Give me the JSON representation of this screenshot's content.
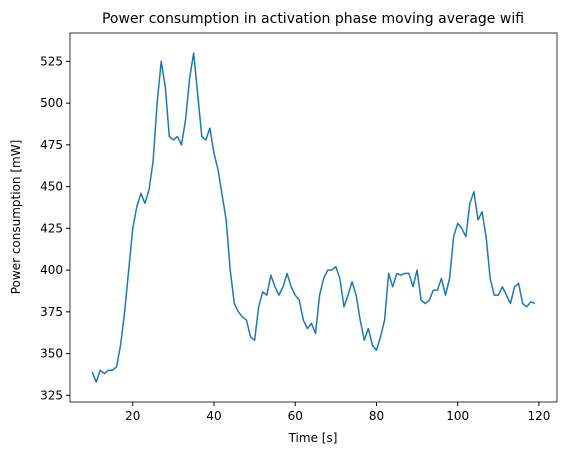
{
  "chart_data": {
    "type": "line",
    "title": "Power consumption in activation phase moving average wifi",
    "x_label": "Time [s]",
    "y_label": "Power consumption [mW]",
    "x": [
      10,
      11,
      12,
      13,
      14,
      15,
      16,
      17,
      18,
      19,
      20,
      21,
      22,
      23,
      24,
      25,
      26,
      27,
      28,
      29,
      30,
      31,
      32,
      33,
      34,
      35,
      36,
      37,
      38,
      39,
      40,
      41,
      42,
      43,
      44,
      45,
      46,
      47,
      48,
      49,
      50,
      51,
      52,
      53,
      54,
      55,
      56,
      57,
      58,
      59,
      60,
      61,
      62,
      63,
      64,
      65,
      66,
      67,
      68,
      69,
      70,
      71,
      72,
      73,
      74,
      75,
      76,
      77,
      78,
      79,
      80,
      81,
      82,
      83,
      84,
      85,
      86,
      87,
      88,
      89,
      90,
      91,
      92,
      93,
      94,
      95,
      96,
      97,
      98,
      99,
      100,
      101,
      102,
      103,
      104,
      105,
      106,
      107,
      108,
      109,
      110,
      111,
      112,
      113,
      114,
      115,
      116,
      117,
      118,
      119
    ],
    "series": [
      {
        "name": "wifi",
        "color": "#1f77b4",
        "values": [
          339,
          333,
          340,
          338,
          340,
          340,
          342,
          355,
          375,
          400,
          425,
          438,
          446,
          440,
          448,
          465,
          500,
          525,
          510,
          480,
          478,
          480,
          475,
          490,
          515,
          530,
          505,
          480,
          478,
          485,
          470,
          460,
          445,
          430,
          400,
          380,
          375,
          372,
          370,
          360,
          358,
          378,
          387,
          385,
          397,
          390,
          385,
          390,
          398,
          390,
          385,
          382,
          370,
          365,
          368,
          362,
          385,
          395,
          400,
          400,
          402,
          395,
          378,
          385,
          393,
          385,
          370,
          358,
          365,
          355,
          352,
          360,
          370,
          398,
          390,
          398,
          397,
          398,
          398,
          390,
          400,
          382,
          380,
          382,
          388,
          388,
          395,
          385,
          395,
          420,
          428,
          425,
          420,
          440,
          447,
          430,
          435,
          420,
          395,
          385,
          385,
          390,
          385,
          380,
          390,
          392,
          380,
          378,
          381,
          380
        ]
      }
    ],
    "xlim": [
      4.55,
      124.45
    ],
    "ylim": [
      321,
      542
    ],
    "xticks": [
      20,
      40,
      60,
      80,
      100,
      120
    ],
    "yticks": [
      325,
      350,
      375,
      400,
      425,
      450,
      475,
      500,
      525
    ]
  }
}
